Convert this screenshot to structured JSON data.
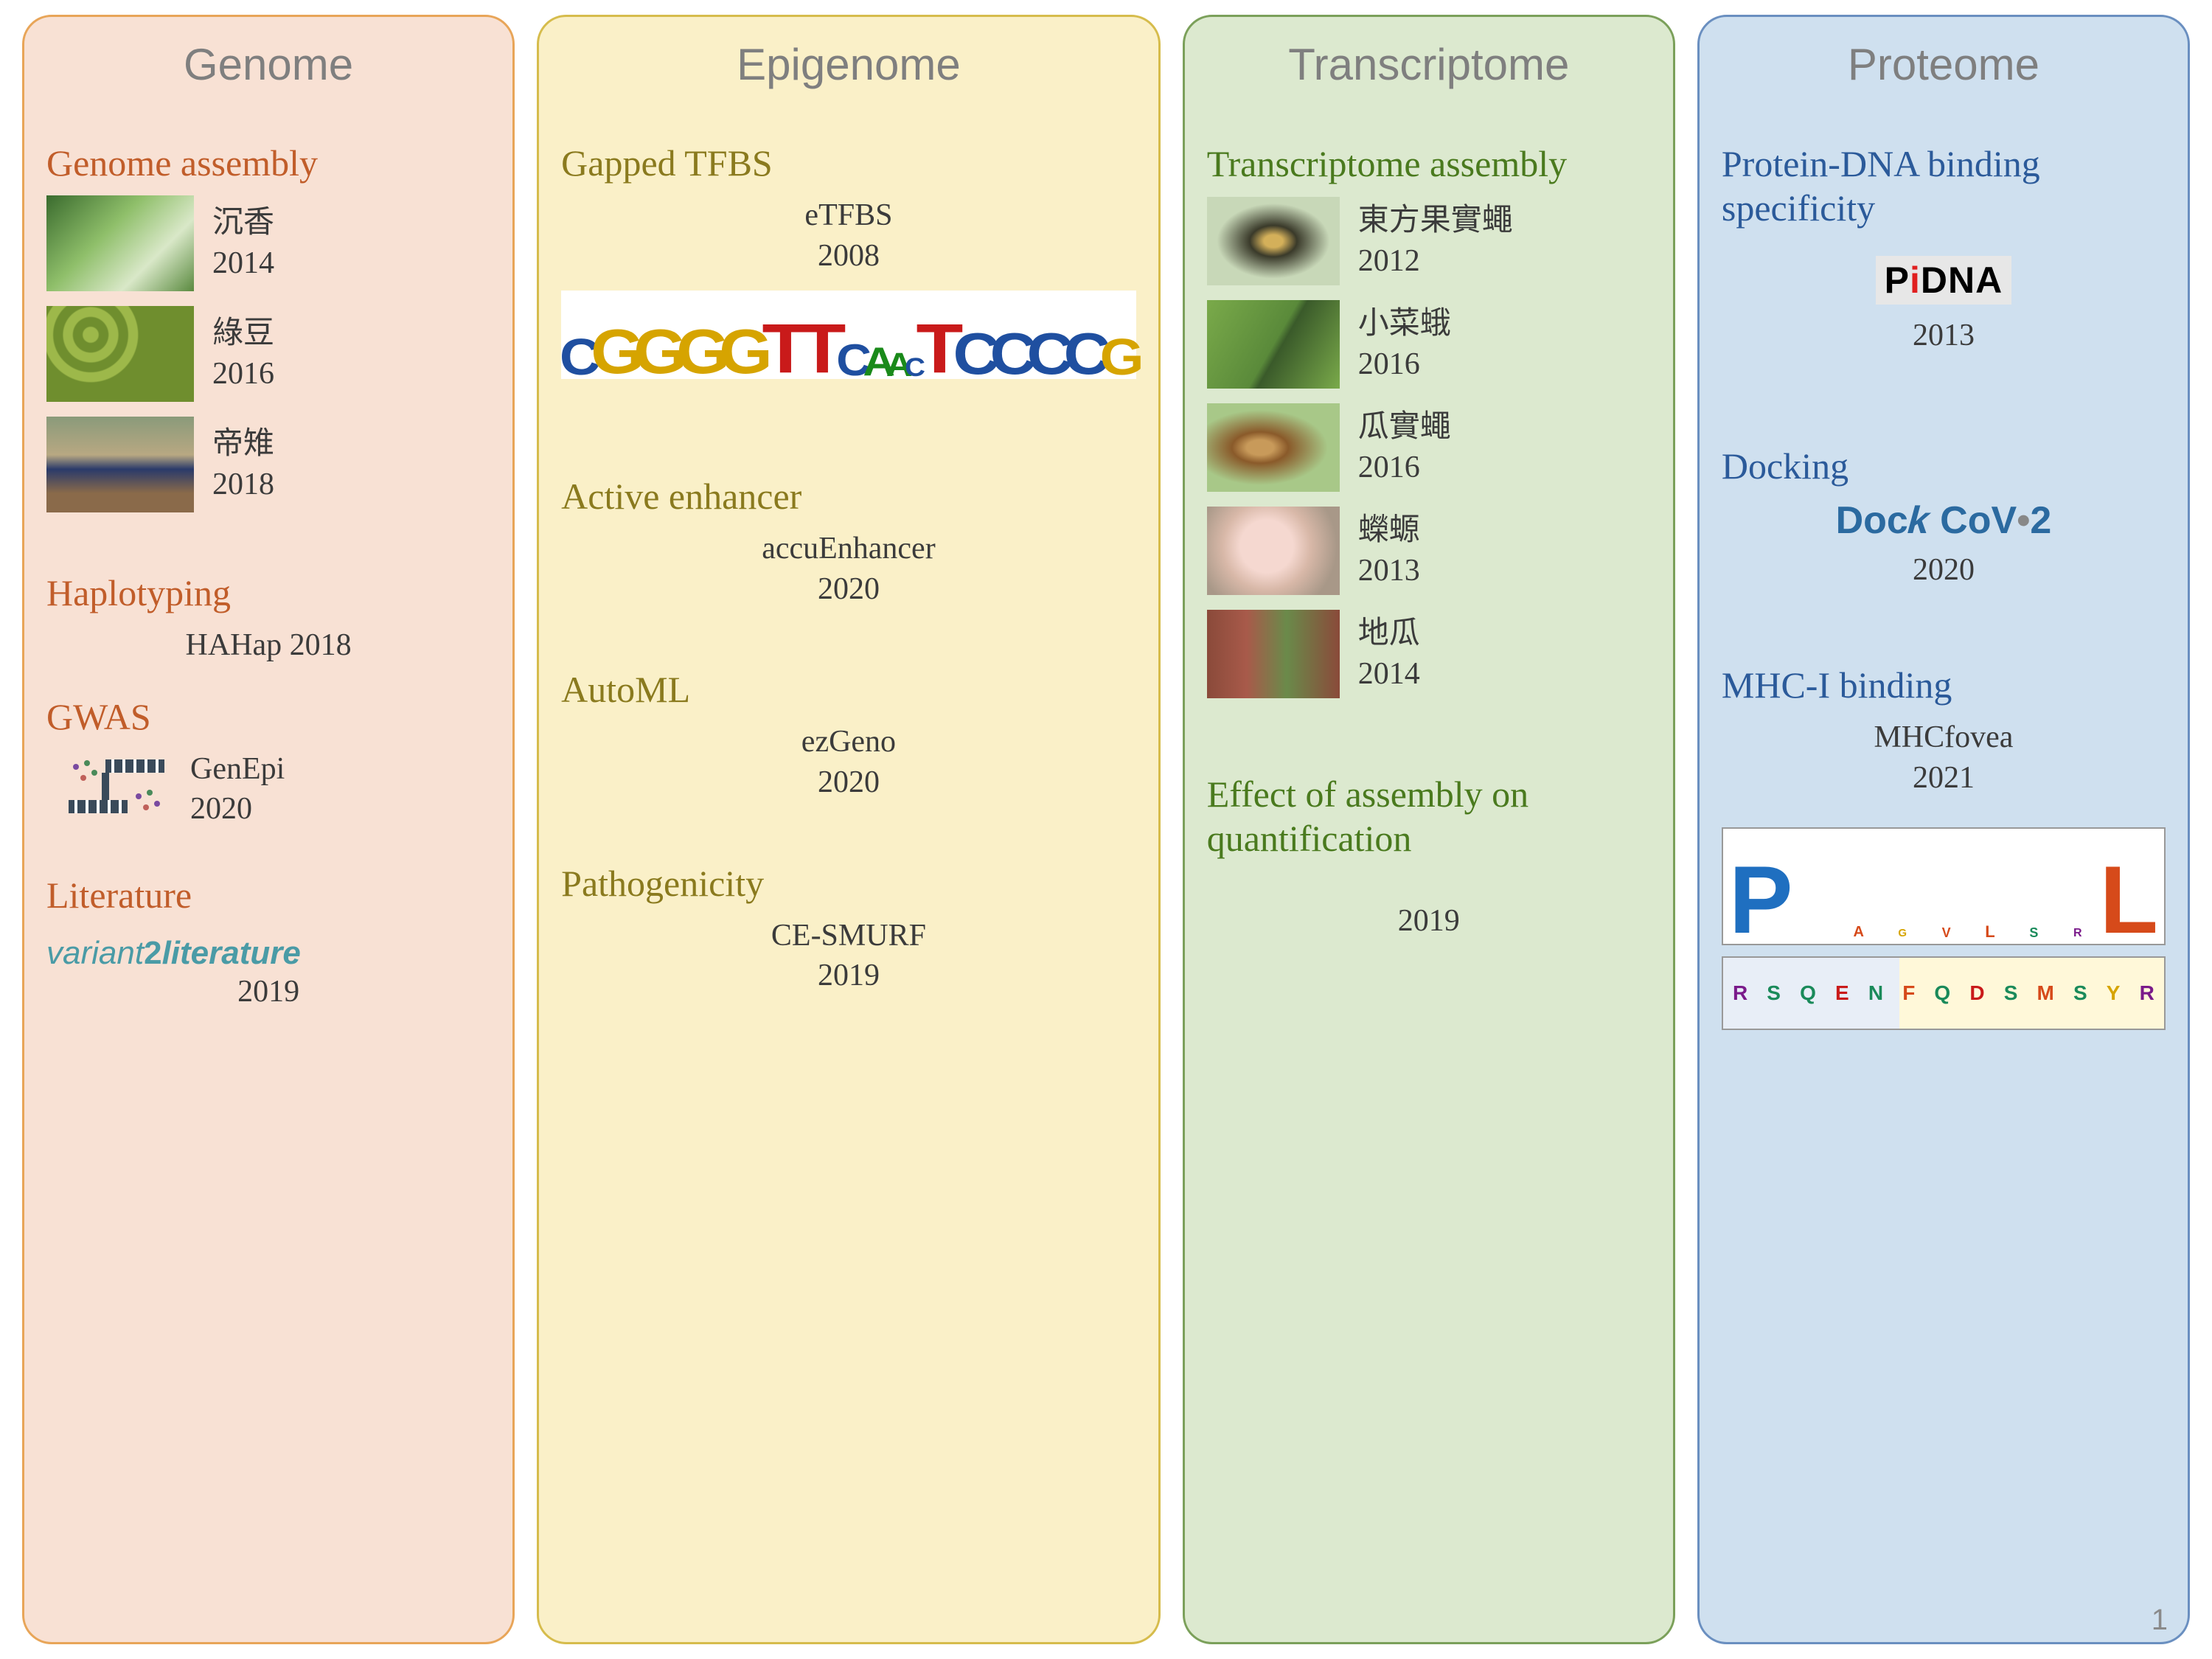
{
  "page_number": "1",
  "panels": [
    {
      "title": "Genome",
      "bg_color": "#f8e1d4",
      "border_color": "#e8a558",
      "heading_color": "#c15d2a",
      "sections": [
        {
          "heading": "Genome assembly",
          "items": [
            {
              "label": "沉香",
              "year": "2014",
              "thumb_css": "linear-gradient(135deg,#3a6b2e 0%,#8fbf6a 40%,#d9e8c8 70%,#5a8a3f 100%)"
            },
            {
              "label": "綠豆",
              "year": "2016",
              "thumb_css": "radial-gradient(circle at 30% 30%, #9db84a 6%, #6f8e2e 7% 14%, #9db84a 15% 22%, #6f8e2e 23% 30%, #9db84a 31% 38%, #6f8e2e 39%)"
            },
            {
              "label": "帝雉",
              "year": "2018",
              "thumb_css": "linear-gradient(to bottom,#8a9a7a 0%,#b8a882 40%,#2a3a6a 55%,#8a6a4a 80%)"
            }
          ]
        },
        {
          "heading": "Haplotyping",
          "items": [
            {
              "label": "HAHap 2018"
            }
          ]
        },
        {
          "heading": "GWAS",
          "items": [
            {
              "label": "GenEpi",
              "year": "2020",
              "icon": "genepi"
            }
          ]
        },
        {
          "heading": "Literature",
          "items": [
            {
              "logo": "variant2literature",
              "year": "2019"
            }
          ]
        }
      ]
    },
    {
      "title": "Epigenome",
      "bg_color": "#faf0c8",
      "border_color": "#d6bc4c",
      "heading_color": "#8a7a1e",
      "sections": [
        {
          "heading": "Gapped TFBS",
          "items": [
            {
              "label": "eTFBS",
              "year": "2008",
              "motif": true
            }
          ]
        },
        {
          "heading": "Active enhancer",
          "items": [
            {
              "label": "accuEnhancer",
              "year": "2020"
            }
          ]
        },
        {
          "heading": "AutoML",
          "items": [
            {
              "label": "ezGeno",
              "year": "2020"
            }
          ]
        },
        {
          "heading": "Pathogenicity",
          "items": [
            {
              "label": "CE-SMURF",
              "year": "2019"
            }
          ]
        }
      ],
      "motif_sequence": [
        {
          "c": "C",
          "h": 70,
          "col": "#1f4fa0"
        },
        {
          "c": "G",
          "h": 85,
          "col": "#d6a400"
        },
        {
          "c": "G",
          "h": 85,
          "col": "#d6a400"
        },
        {
          "c": "G",
          "h": 85,
          "col": "#d6a400"
        },
        {
          "c": "G",
          "h": 85,
          "col": "#d6a400"
        },
        {
          "c": "T",
          "h": 95,
          "col": "#c91a1a"
        },
        {
          "c": "T",
          "h": 95,
          "col": "#c91a1a"
        },
        {
          "c": "C",
          "h": 60,
          "col": "#1f4fa0"
        },
        {
          "c": "A",
          "h": 55,
          "col": "#1a8a1a"
        },
        {
          "c": "A",
          "h": 45,
          "col": "#1a8a1a"
        },
        {
          "c": "C",
          "h": 35,
          "col": "#1f4fa0"
        },
        {
          "c": "T",
          "h": 95,
          "col": "#c91a1a"
        },
        {
          "c": "C",
          "h": 80,
          "col": "#1f4fa0"
        },
        {
          "c": "C",
          "h": 80,
          "col": "#1f4fa0"
        },
        {
          "c": "C",
          "h": 80,
          "col": "#1f4fa0"
        },
        {
          "c": "C",
          "h": 80,
          "col": "#1f4fa0"
        },
        {
          "c": "G",
          "h": 70,
          "col": "#d6a400"
        }
      ]
    },
    {
      "title": "Transcriptome",
      "bg_color": "#dce9cf",
      "border_color": "#7ba05a",
      "heading_color": "#4a7a1e",
      "sections": [
        {
          "heading": "Transcriptome assembly",
          "items": [
            {
              "label": "東方果實蠅",
              "year": "2012",
              "thumb_css": "radial-gradient(ellipse at 50% 50%, #d4b05a 10%, #3a3a2a 25%, #c8d8b8 60%)"
            },
            {
              "label": "小菜蛾",
              "year": "2016",
              "thumb_css": "linear-gradient(120deg,#7aaa4a 0%,#5a8a3a 50%,#3a5a2a 55%,#7aaa4a 100%)"
            },
            {
              "label": "瓜實蠅",
              "year": "2016",
              "thumb_css": "radial-gradient(ellipse at 40% 50%, #c89a5a 12%, #8a5a2a 25%, #a8c888 60%)"
            },
            {
              "label": "蠑螈",
              "year": "2013",
              "thumb_css": "radial-gradient(circle at 45% 45%, #f5d8d0 30%, #d8b8a8 50%, #a89888 80%)"
            },
            {
              "label": "地瓜",
              "year": "2014",
              "thumb_css": "linear-gradient(to right,#8a4a3a 0%,#a85a4a 30%,#6a8a4a 60%,#8a4a3a 100%)"
            }
          ]
        },
        {
          "heading": "Effect of assembly on quantification",
          "items": [
            {
              "year": "2019"
            }
          ]
        }
      ]
    },
    {
      "title": "Proteome",
      "bg_color": "#cfe0ef",
      "border_color": "#6a8fc0",
      "heading_color": "#2b5a9a",
      "sections": [
        {
          "heading": "Protein-DNA binding specificity",
          "items": [
            {
              "logo": "pidna",
              "year": "2013"
            }
          ]
        },
        {
          "heading": "Docking",
          "items": [
            {
              "logo": "dockcov2",
              "year": "2020"
            }
          ]
        },
        {
          "heading": "MHC-I binding",
          "items": [
            {
              "label": "MHCfovea",
              "year": "2021",
              "seqlogo": true
            }
          ]
        }
      ],
      "dockcov_text": {
        "dock": "Doc",
        "k": "k",
        "cov": " CoV",
        "dot": "•",
        "two": "2"
      },
      "pidna_text": {
        "p": "P",
        "i": "i",
        "dna": "DNA"
      },
      "seqlogo1": [
        {
          "c": "P",
          "h": 130,
          "col": "#1f6fc0"
        },
        {
          "c": " ",
          "h": 10,
          "col": "#fff"
        },
        {
          "c": "A",
          "h": 20,
          "col": "#d64a1a"
        },
        {
          "c": "G",
          "h": 15,
          "col": "#d6a400"
        },
        {
          "c": "V",
          "h": 18,
          "col": "#d64a1a"
        },
        {
          "c": "L",
          "h": 22,
          "col": "#d64a1a"
        },
        {
          "c": "S",
          "h": 18,
          "col": "#1a8a5a"
        },
        {
          "c": "R",
          "h": 16,
          "col": "#7a1a8a"
        },
        {
          "c": "L",
          "h": 130,
          "col": "#d64a1a"
        }
      ],
      "seqlogo2": [
        "R",
        "S",
        "Q",
        "E",
        "N",
        "F",
        "Q",
        "D",
        "S",
        "M",
        "S",
        "Y",
        "R"
      ],
      "seqlogo2_colors": [
        "#7a1a8a",
        "#1a8a5a",
        "#1a8a5a",
        "#c91a1a",
        "#1a8a5a",
        "#d64a1a",
        "#1a8a5a",
        "#c91a1a",
        "#1a8a5a",
        "#d64a1a",
        "#1a8a5a",
        "#d6a400",
        "#7a1a8a"
      ]
    }
  ]
}
